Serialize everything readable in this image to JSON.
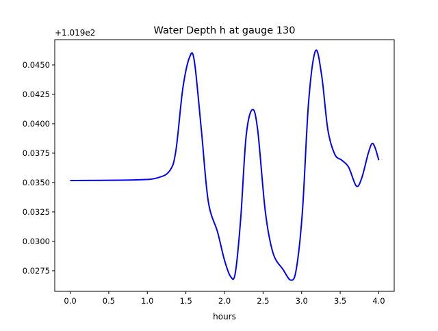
{
  "chart_data": {
    "type": "line",
    "title": "Water Depth h at gauge 130",
    "xlabel": "hours",
    "ylabel": "",
    "offset_text": "+1.019e2",
    "xlim": [
      -0.2,
      4.2
    ],
    "ylim": [
      0.02575,
      0.04715
    ],
    "xticks": [
      0.0,
      0.5,
      1.0,
      1.5,
      2.0,
      2.5,
      3.0,
      3.5,
      4.0
    ],
    "xtick_labels": [
      "0.0",
      "0.5",
      "1.0",
      "1.5",
      "2.0",
      "2.5",
      "3.0",
      "3.5",
      "4.0"
    ],
    "yticks": [
      0.0275,
      0.03,
      0.0325,
      0.035,
      0.0375,
      0.04,
      0.0425,
      0.045
    ],
    "ytick_labels": [
      "0.0275",
      "0.0300",
      "0.0325",
      "0.0350",
      "0.0375",
      "0.0400",
      "0.0425",
      "0.0450"
    ],
    "grid": false,
    "series": [
      {
        "name": "h",
        "color": "#0000ff",
        "x": [
          0,
          0.86,
          1.13,
          1.29,
          1.37,
          1.46,
          1.55,
          1.61,
          1.7,
          1.79,
          1.91,
          2.0,
          2.08,
          2.14,
          2.21,
          2.28,
          2.36,
          2.43,
          2.53,
          2.63,
          2.76,
          2.86,
          2.93,
          3.01,
          3.09,
          3.18,
          3.26,
          3.34,
          3.43,
          3.52,
          3.61,
          3.71,
          3.78,
          3.86,
          3.91,
          3.95,
          4.0
        ],
        "y": [
          0.03517,
          0.03523,
          0.0354,
          0.036,
          0.0377,
          0.043,
          0.0457,
          0.0453,
          0.0395,
          0.0334,
          0.0308,
          0.0284,
          0.027,
          0.0273,
          0.0319,
          0.0389,
          0.0412,
          0.0395,
          0.0325,
          0.029,
          0.0276,
          0.0267,
          0.0276,
          0.0325,
          0.0418,
          0.0462,
          0.0441,
          0.0395,
          0.0374,
          0.0369,
          0.0363,
          0.0347,
          0.0354,
          0.0374,
          0.0383,
          0.038,
          0.0369
        ]
      }
    ]
  }
}
